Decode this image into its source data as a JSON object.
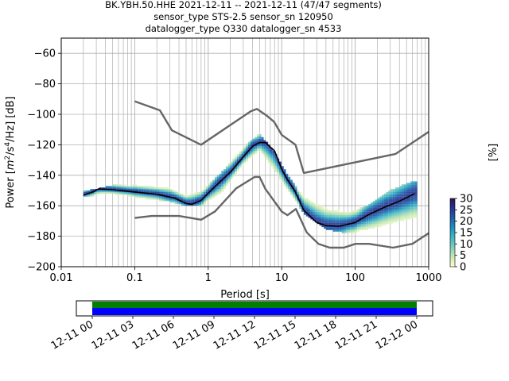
{
  "chart_data": [
    {
      "type": "heatmap",
      "title_lines": [
        "BK.YBH.50.HHE   2021-12-11 -- 2021-12-11  (47/47 segments)",
        "sensor_type STS-2.5 sensor_sn 120950",
        "datalogger_type Q330 datalogger_sn 4533"
      ],
      "xlabel": "Period [s]",
      "ylabel": "Power [m²/s⁴/Hz] [dB]",
      "ylabel_parts": {
        "pre": "Power [",
        "m": "m",
        "sup1": "2",
        "mid": "/s",
        "sup2": "4",
        "post": "/Hz] [dB]"
      },
      "xscale": "log",
      "xlim": [
        0.01,
        1000
      ],
      "ylim": [
        -200,
        -50
      ],
      "x_ticks": [
        0.01,
        0.1,
        1,
        10,
        100,
        1000
      ],
      "x_tick_labels": [
        "0.01",
        "0.1",
        "1",
        "10",
        "100",
        "1000"
      ],
      "y_ticks": [
        -200,
        -180,
        -160,
        -140,
        -120,
        -100,
        -80,
        -60
      ],
      "y_tick_labels": [
        "−200",
        "−180",
        "−160",
        "−140",
        "−120",
        "−100",
        "−80",
        "−60"
      ],
      "grid": true,
      "colorbar": {
        "label": "[%]",
        "range": [
          0,
          30
        ],
        "ticks": [
          0,
          5,
          10,
          15,
          20,
          25,
          30
        ],
        "tick_labels": [
          "0",
          "5",
          "10",
          "15",
          "20",
          "25",
          "30"
        ],
        "colors": [
          "#ffffcc",
          "#c7e9b4",
          "#7fcdbb",
          "#41b6c4",
          "#1d91c0",
          "#225ea8",
          "#253494",
          "#2a1a4a"
        ]
      },
      "colors": {
        "noise_model": "#666666",
        "mode_line": "#000000",
        "grid": "#b0b0b0"
      },
      "series": [
        {
          "role": "new-high-noise-model",
          "x": [
            0.1,
            0.22,
            0.32,
            0.8,
            3.8,
            4.6,
            6.3,
            7.9,
            10,
            15.4,
            20,
            354.8,
            1000
          ],
          "y": [
            -91.5,
            -97.4,
            -110.5,
            -120,
            -98,
            -96.5,
            -101,
            -105,
            -113.5,
            -120,
            -138.5,
            -126,
            -111.5
          ]
        },
        {
          "role": "new-low-noise-model",
          "x": [
            0.1,
            0.17,
            0.4,
            0.8,
            1.24,
            2.4,
            4.3,
            5,
            6,
            10,
            12,
            15.6,
            21.9,
            31.6,
            45,
            70,
            101,
            154,
            328,
            600,
            1000
          ],
          "y": [
            -168,
            -166.7,
            -166.7,
            -169.2,
            -163.7,
            -148.6,
            -141.1,
            -141.1,
            -149,
            -163.8,
            -166.2,
            -162.1,
            -177.5,
            -185,
            -187.5,
            -187.5,
            -185,
            -185,
            -187.5,
            -185,
            -178
          ]
        },
        {
          "role": "mode",
          "x": [
            0.02,
            0.027,
            0.032,
            0.05,
            0.1,
            0.2,
            0.35,
            0.5,
            0.6,
            0.8,
            1.2,
            2,
            3,
            4,
            5,
            6,
            8,
            10,
            12,
            15,
            20,
            30,
            40,
            60,
            100,
            150,
            250,
            400,
            650
          ],
          "y": [
            -153,
            -151,
            -149,
            -149.5,
            -151,
            -152.5,
            -155,
            -158.5,
            -159,
            -156.5,
            -148,
            -138,
            -128,
            -121,
            -118.5,
            -118.5,
            -124,
            -136,
            -143,
            -150,
            -163,
            -171,
            -173,
            -173.5,
            -171,
            -166,
            -161,
            -157,
            -152
          ]
        }
      ],
      "histogram_spread": {
        "x": [
          0.02,
          0.05,
          0.1,
          0.3,
          0.5,
          0.8,
          1.5,
          3,
          5,
          8,
          12,
          20,
          40,
          80,
          150,
          300,
          650
        ],
        "upper_db": [
          -152,
          -148,
          -147,
          -149,
          -154,
          -151,
          -140,
          -123,
          -114,
          -126,
          -141,
          -155,
          -163,
          -165,
          -161,
          -151,
          -145
        ],
        "lower_db": [
          -154,
          -152,
          -154,
          -157,
          -160,
          -160,
          -152,
          -133,
          -124,
          -137,
          -150,
          -165,
          -175,
          -178,
          -176,
          -172,
          -168
        ]
      }
    },
    {
      "type": "timeline",
      "tick_labels": [
        "12-11 00",
        "12-11 03",
        "12-11 06",
        "12-11 09",
        "12-11 12",
        "12-11 15",
        "12-11 18",
        "12-11 21",
        "12-12 00"
      ],
      "tick_hours": [
        0,
        3,
        6,
        9,
        12,
        15,
        18,
        21,
        24
      ],
      "coverage_hours": [
        0,
        24
      ],
      "colors": [
        "#008000",
        "#0000ff"
      ]
    }
  ]
}
